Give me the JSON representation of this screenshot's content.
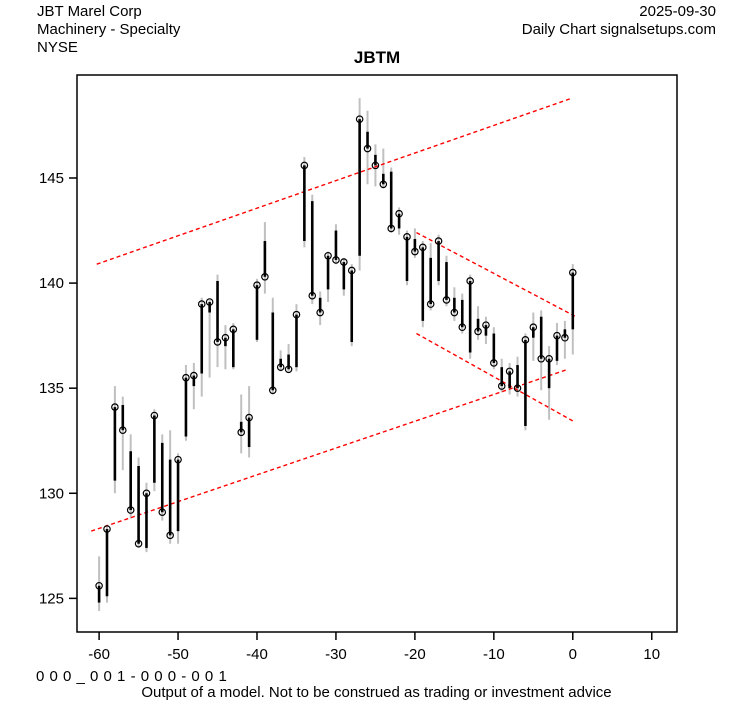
{
  "header": {
    "company": "JBT Marel Corp",
    "industry": "Machinery - Specialty",
    "exchange": "NYSE",
    "date": "2025-09-30",
    "source": "Daily Chart signalsetups.com"
  },
  "title": "JBTM",
  "footer": {
    "code": "0 0 0 _ 0 0 1 - 0 0 0 - 0 0 1",
    "disclaimer": "Output of a model. Not to be construed as trading or investment advice"
  },
  "colors": {
    "bar": "#000000",
    "wick": "#c0c0c0",
    "trendline": "#ff0000",
    "text": "#000000",
    "background": "#ffffff"
  },
  "chart_data": {
    "type": "ohlc-bar",
    "title": "JBTM",
    "xlabel": "",
    "ylabel": "",
    "grid": false,
    "legend": "none",
    "x_axis": {
      "min": -62.8,
      "max": 13.2,
      "ticks": [
        -60,
        -50,
        -40,
        -30,
        -20,
        -10,
        0,
        10
      ]
    },
    "y_axis": {
      "min": 123.4,
      "max": 149.9,
      "ticks": [
        125,
        130,
        135,
        140,
        145
      ]
    },
    "marker": "open circle at close price",
    "bars": [
      {
        "t": -60,
        "o": 124.8,
        "h": 127.0,
        "l": 124.4,
        "c": 125.6
      },
      {
        "t": -59,
        "o": 125.1,
        "h": 128.5,
        "l": 124.8,
        "c": 128.3
      },
      {
        "t": -58,
        "o": 130.6,
        "h": 135.1,
        "l": 130.0,
        "c": 134.1
      },
      {
        "t": -57,
        "o": 134.2,
        "h": 134.6,
        "l": 131.1,
        "c": 133.0
      },
      {
        "t": -56,
        "o": 132.0,
        "h": 132.8,
        "l": 128.8,
        "c": 129.2
      },
      {
        "t": -55,
        "o": 131.3,
        "h": 131.7,
        "l": 127.4,
        "c": 127.6
      },
      {
        "t": -54,
        "o": 127.4,
        "h": 130.5,
        "l": 127.2,
        "c": 130.0
      },
      {
        "t": -53,
        "o": 130.5,
        "h": 134.0,
        "l": 130.1,
        "c": 133.7
      },
      {
        "t": -52,
        "o": 132.4,
        "h": 132.8,
        "l": 128.7,
        "c": 129.1
      },
      {
        "t": -51,
        "o": 131.6,
        "h": 133.0,
        "l": 127.6,
        "c": 128.0
      },
      {
        "t": -50,
        "o": 128.2,
        "h": 131.9,
        "l": 127.6,
        "c": 131.6
      },
      {
        "t": -49,
        "o": 132.7,
        "h": 136.1,
        "l": 132.5,
        "c": 135.5
      },
      {
        "t": -48,
        "o": 135.1,
        "h": 136.2,
        "l": 134.0,
        "c": 135.6
      },
      {
        "t": -47,
        "o": 135.7,
        "h": 139.3,
        "l": 134.6,
        "c": 139.0
      },
      {
        "t": -46,
        "o": 138.6,
        "h": 139.2,
        "l": 135.5,
        "c": 139.1
      },
      {
        "t": -45,
        "o": 140.1,
        "h": 140.4,
        "l": 136.0,
        "c": 137.2
      },
      {
        "t": -44,
        "o": 137.0,
        "h": 138.0,
        "l": 135.9,
        "c": 137.4
      },
      {
        "t": -43,
        "o": 136.0,
        "h": 138.1,
        "l": 135.9,
        "c": 137.8
      },
      {
        "t": -42,
        "o": 133.4,
        "h": 134.7,
        "l": 131.9,
        "c": 132.9
      },
      {
        "t": -41,
        "o": 132.2,
        "h": 135.1,
        "l": 131.7,
        "c": 133.6
      },
      {
        "t": -40,
        "o": 137.3,
        "h": 140.2,
        "l": 137.2,
        "c": 139.9
      },
      {
        "t": -39,
        "o": 142.0,
        "h": 142.9,
        "l": 139.5,
        "c": 140.3
      },
      {
        "t": -38,
        "o": 138.6,
        "h": 139.3,
        "l": 134.7,
        "c": 134.9
      },
      {
        "t": -37,
        "o": 136.4,
        "h": 136.8,
        "l": 135.8,
        "c": 136.0
      },
      {
        "t": -36,
        "o": 136.6,
        "h": 137.1,
        "l": 135.8,
        "c": 135.9
      },
      {
        "t": -35,
        "o": 136.0,
        "h": 139.0,
        "l": 135.8,
        "c": 138.5
      },
      {
        "t": -34,
        "o": 142.0,
        "h": 146.0,
        "l": 141.7,
        "c": 145.6
      },
      {
        "t": -33,
        "o": 143.9,
        "h": 144.2,
        "l": 139.0,
        "c": 139.4
      },
      {
        "t": -32,
        "o": 139.3,
        "h": 139.6,
        "l": 138.0,
        "c": 138.6
      },
      {
        "t": -31,
        "o": 139.7,
        "h": 141.5,
        "l": 139.1,
        "c": 141.3
      },
      {
        "t": -30,
        "o": 142.5,
        "h": 142.8,
        "l": 140.9,
        "c": 141.1
      },
      {
        "t": -29,
        "o": 139.7,
        "h": 141.2,
        "l": 139.4,
        "c": 141.0
      },
      {
        "t": -28,
        "o": 137.2,
        "h": 140.9,
        "l": 137.0,
        "c": 140.6
      },
      {
        "t": -27,
        "o": 141.3,
        "h": 148.8,
        "l": 140.6,
        "c": 147.8
      },
      {
        "t": -26,
        "o": 147.2,
        "h": 148.2,
        "l": 144.7,
        "c": 146.4
      },
      {
        "t": -25,
        "o": 146.1,
        "h": 146.6,
        "l": 144.6,
        "c": 145.6
      },
      {
        "t": -24,
        "o": 145.2,
        "h": 146.4,
        "l": 144.5,
        "c": 144.7
      },
      {
        "t": -23,
        "o": 145.3,
        "h": 145.5,
        "l": 142.4,
        "c": 142.6
      },
      {
        "t": -22,
        "o": 142.6,
        "h": 143.6,
        "l": 142.3,
        "c": 143.3
      },
      {
        "t": -21,
        "o": 140.1,
        "h": 142.5,
        "l": 139.9,
        "c": 142.2
      },
      {
        "t": -20,
        "o": 142.1,
        "h": 142.6,
        "l": 141.2,
        "c": 141.5
      },
      {
        "t": -19,
        "o": 138.2,
        "h": 142.0,
        "l": 137.9,
        "c": 141.7
      },
      {
        "t": -18,
        "o": 141.2,
        "h": 141.9,
        "l": 138.7,
        "c": 139.0
      },
      {
        "t": -17,
        "o": 140.1,
        "h": 142.3,
        "l": 139.9,
        "c": 142.0
      },
      {
        "t": -16,
        "o": 141.0,
        "h": 141.3,
        "l": 138.9,
        "c": 139.2
      },
      {
        "t": -15,
        "o": 139.3,
        "h": 139.8,
        "l": 138.2,
        "c": 138.6
      },
      {
        "t": -14,
        "o": 139.2,
        "h": 139.5,
        "l": 137.6,
        "c": 137.9
      },
      {
        "t": -13,
        "o": 136.7,
        "h": 140.4,
        "l": 136.4,
        "c": 140.1
      },
      {
        "t": -12,
        "o": 138.3,
        "h": 138.9,
        "l": 137.3,
        "c": 137.7
      },
      {
        "t": -11,
        "o": 137.5,
        "h": 138.4,
        "l": 137.1,
        "c": 138.0
      },
      {
        "t": -10,
        "o": 137.6,
        "h": 137.9,
        "l": 135.9,
        "c": 136.2
      },
      {
        "t": -9,
        "o": 136.0,
        "h": 136.4,
        "l": 134.8,
        "c": 135.1
      },
      {
        "t": -8,
        "o": 135.0,
        "h": 136.2,
        "l": 134.7,
        "c": 135.8
      },
      {
        "t": -7,
        "o": 136.1,
        "h": 136.5,
        "l": 134.6,
        "c": 135.0
      },
      {
        "t": -6,
        "o": 133.2,
        "h": 137.6,
        "l": 133.0,
        "c": 137.3
      },
      {
        "t": -5,
        "o": 137.4,
        "h": 138.6,
        "l": 136.3,
        "c": 137.9
      },
      {
        "t": -4,
        "o": 138.4,
        "h": 138.7,
        "l": 134.9,
        "c": 136.4
      },
      {
        "t": -3,
        "o": 135.0,
        "h": 137.0,
        "l": 133.5,
        "c": 136.4
      },
      {
        "t": -2,
        "o": 136.3,
        "h": 138.1,
        "l": 136.1,
        "c": 137.5
      },
      {
        "t": -1,
        "o": 137.8,
        "h": 138.2,
        "l": 136.4,
        "c": 137.4
      },
      {
        "t": 0,
        "o": 137.8,
        "h": 140.9,
        "l": 136.6,
        "c": 140.5
      }
    ],
    "trendlines": [
      {
        "name": "rising-channel-upper",
        "t1": -60.3,
        "v1": 140.9,
        "t2": -0.1,
        "v2": 148.8
      },
      {
        "name": "rising-channel-lower",
        "t1": -61.0,
        "v1": 128.2,
        "t2": -0.6,
        "v2": 135.9
      },
      {
        "name": "falling-channel-upper",
        "t1": -19.8,
        "v1": 142.4,
        "t2": 0.4,
        "v2": 138.4
      },
      {
        "name": "falling-channel-lower",
        "t1": -19.8,
        "v1": 137.6,
        "t2": 0.2,
        "v2": 133.4
      }
    ]
  }
}
